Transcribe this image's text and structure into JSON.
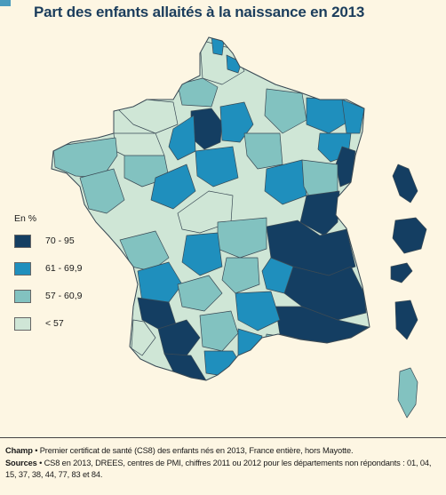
{
  "title": "Part des enfants allaités à la naissance en 2013",
  "legend": {
    "title": "En %",
    "classes": [
      {
        "label": "70 - 95",
        "color": "#143e62"
      },
      {
        "label": "61 - 69,9",
        "color": "#1f8fbd"
      },
      {
        "label": "57 - 60,9",
        "color": "#82c2c0"
      },
      {
        "label": "< 57",
        "color": "#cfe6d6"
      }
    ]
  },
  "footer": {
    "champ_label": "Champ",
    "champ_text": " • Premier certificat de santé (CS8) des enfants nés en 2013, France entière, hors Mayotte.",
    "sources_label": "Sources",
    "sources_text": " • CS8 en 2013, DREES, centres de PMI, chiffres 2011 ou 2012 pour les départements non répondants : 01, 04, 15, 37, 38, 44, 77, 83 et 84."
  }
}
